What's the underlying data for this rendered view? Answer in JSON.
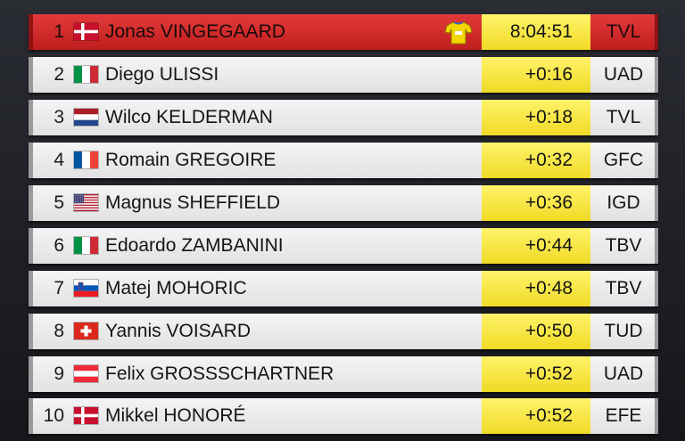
{
  "rows": [
    {
      "pos": "1",
      "flag": "denmark",
      "name": "Jonas VINGEGAARD",
      "time": "8:04:51",
      "team": "TVL",
      "leader": true,
      "jersey": "yellow-jersey-icon"
    },
    {
      "pos": "2",
      "flag": "italy",
      "name": "Diego ULISSI",
      "time": "+0:16",
      "team": "UAD"
    },
    {
      "pos": "3",
      "flag": "netherlands",
      "name": "Wilco KELDERMAN",
      "time": "+0:18",
      "team": "TVL"
    },
    {
      "pos": "4",
      "flag": "france",
      "name": "Romain GREGOIRE",
      "time": "+0:32",
      "team": "GFC"
    },
    {
      "pos": "5",
      "flag": "usa",
      "name": "Magnus SHEFFIELD",
      "time": "+0:36",
      "team": "IGD"
    },
    {
      "pos": "6",
      "flag": "italy",
      "name": "Edoardo ZAMBANINI",
      "time": "+0:44",
      "team": "TBV"
    },
    {
      "pos": "7",
      "flag": "slovenia",
      "name": "Matej MOHORIC",
      "time": "+0:48",
      "team": "TBV"
    },
    {
      "pos": "8",
      "flag": "switzerland",
      "name": "Yannis VOISARD",
      "time": "+0:50",
      "team": "TUD"
    },
    {
      "pos": "9",
      "flag": "austria",
      "name": "Felix GROSSSCHARTNER",
      "time": "+0:52",
      "team": "UAD"
    },
    {
      "pos": "10",
      "flag": "denmark",
      "name": "Mikkel HONORÉ",
      "time": "+0:52",
      "team": "EFE"
    }
  ],
  "colors": {
    "leader_bg": "#d12a2a",
    "row_bg": "#ececec",
    "time_bg": "#f5e53c",
    "jersey": "#f2d600"
  }
}
